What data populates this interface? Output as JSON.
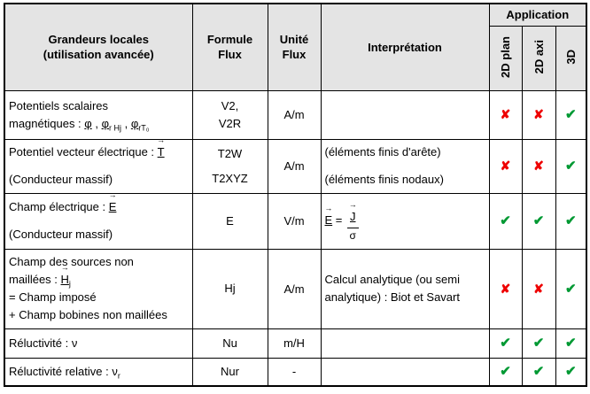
{
  "header": {
    "col1": [
      "Grandeurs locales",
      "(utilisation avancée)"
    ],
    "col2": [
      "Formule",
      "Flux"
    ],
    "col3": [
      "Unité",
      "Flux"
    ],
    "col4": "Interprétation",
    "application": "Application",
    "app_cols": [
      "2D plan",
      "2D axi",
      "3D"
    ]
  },
  "marks": {
    "check_glyph": "✔",
    "cross_glyph": "✘"
  },
  "colors": {
    "check": "#009933",
    "cross": "#ee0000",
    "header_bg": "#e4e4e4",
    "border": "#000000"
  },
  "rows": [
    {
      "grandeur": [
        [
          {
            "text": "Potentiels scalaires"
          }
        ],
        [
          {
            "text": "magnétiques : "
          },
          {
            "text": "φ",
            "u": true
          },
          {
            "text": " , "
          },
          {
            "text": "φ",
            "u": true,
            "sub": "r Hj"
          },
          {
            "text": " , "
          },
          {
            "text": "φ",
            "u": true,
            "sub": "rT₀"
          }
        ]
      ],
      "formule": [
        "V2,",
        "V2R"
      ],
      "unite": "A/m",
      "interpretation": [],
      "marks": [
        "cross",
        "cross",
        "check"
      ]
    },
    {
      "gap": true,
      "grandeur": [
        [
          {
            "text": "Potentiel vecteur électrique : "
          },
          {
            "text": "T",
            "u": true,
            "arrow": true
          }
        ],
        [
          {
            "text": "(Conducteur massif)"
          }
        ]
      ],
      "formule": [
        "T2W",
        "T2XYZ"
      ],
      "unite": "A/m",
      "interpretation": [
        [
          {
            "text": "(éléments finis d'arête)"
          }
        ],
        [
          {
            "text": "(éléments finis nodaux)"
          }
        ]
      ],
      "marks": [
        "cross",
        "cross",
        "check"
      ]
    },
    {
      "gap": true,
      "grandeur": [
        [
          {
            "text": "Champ électrique : "
          },
          {
            "text": "E",
            "u": true,
            "arrow": true
          }
        ],
        [
          {
            "text": "(Conducteur massif)"
          }
        ]
      ],
      "formule": [
        "E"
      ],
      "unite": "V/m",
      "interpretation": [
        [
          {
            "text": "E",
            "u": true,
            "arrow": true
          },
          {
            "text": " = "
          },
          {
            "frac": {
              "num": {
                "text": "J",
                "u": true,
                "arrow": true
              },
              "den": "σ"
            }
          }
        ]
      ],
      "marks": [
        "check",
        "check",
        "check"
      ]
    },
    {
      "grandeur": [
        [
          {
            "text": "Champ des sources non"
          }
        ],
        [
          {
            "text": "maillées : "
          },
          {
            "text": "H",
            "u": true,
            "arrow": true,
            "sub": "j"
          }
        ],
        [
          {
            "text": "= Champ imposé"
          }
        ],
        [
          {
            "text": "+ Champ bobines non maillées"
          }
        ]
      ],
      "formule": [
        "Hj"
      ],
      "unite": "A/m",
      "interpretation": [
        [
          {
            "text": "Calcul analytique (ou semi"
          }
        ],
        [
          {
            "text": "analytique) : Biot et Savart"
          }
        ]
      ],
      "marks": [
        "cross",
        "cross",
        "check"
      ]
    },
    {
      "grandeur": [
        [
          {
            "text": "Réluctivité : "
          },
          {
            "text": "ν"
          }
        ]
      ],
      "formule": [
        "Nu"
      ],
      "unite": "m/H",
      "interpretation": [],
      "marks": [
        "check",
        "check",
        "check"
      ]
    },
    {
      "grandeur": [
        [
          {
            "text": "Réluctivité relative : "
          },
          {
            "text": "ν",
            "sub": "r"
          }
        ]
      ],
      "formule": [
        "Nur"
      ],
      "unite": "-",
      "interpretation": [],
      "marks": [
        "check",
        "check",
        "check"
      ]
    }
  ]
}
